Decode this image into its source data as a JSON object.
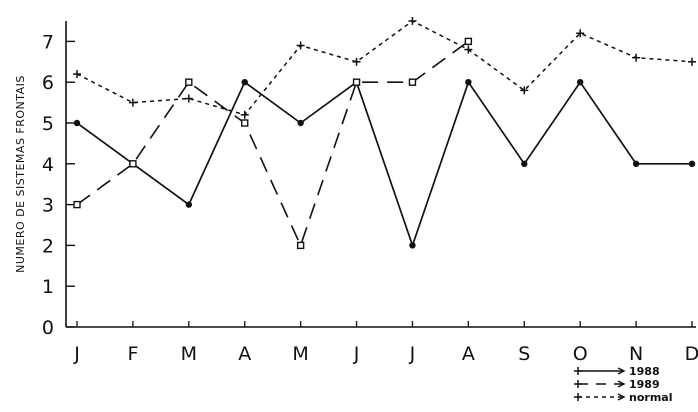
{
  "chart_data": {
    "type": "line",
    "title": "",
    "xlabel": "",
    "ylabel": "NUMERO DE SISTEMAS FRONTAIS",
    "categories": [
      "J",
      "F",
      "M",
      "A",
      "M",
      "J",
      "J",
      "A",
      "S",
      "O",
      "N",
      "D"
    ],
    "yticks": [
      "0",
      "1",
      "2",
      "3",
      "4",
      "5",
      "6",
      "7"
    ],
    "ylim": [
      0,
      7.5
    ],
    "grid": false,
    "legend_position": "bottom-right",
    "series": [
      {
        "name": "1988",
        "line_style": "solid",
        "marker": "dot",
        "values": [
          5,
          4,
          3,
          6,
          5,
          6,
          2,
          6,
          4,
          6,
          4,
          4
        ]
      },
      {
        "name": "1989",
        "line_style": "dashed",
        "marker": "square",
        "values": [
          3,
          4,
          6,
          5,
          2,
          6,
          6,
          7,
          null,
          null,
          null,
          null
        ]
      },
      {
        "name": "normal",
        "line_style": "dotted",
        "marker": "plus",
        "values": [
          6.2,
          5.5,
          5.6,
          5.2,
          6.9,
          6.5,
          7.5,
          6.8,
          5.8,
          7.2,
          6.6,
          6.5
        ]
      }
    ]
  }
}
